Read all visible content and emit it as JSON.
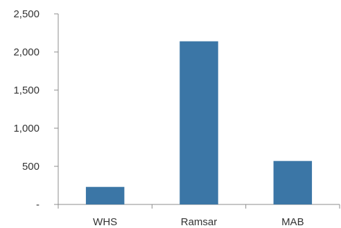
{
  "chart_data": {
    "type": "bar",
    "categories": [
      "WHS",
      "Ramsar",
      "MAB"
    ],
    "values": [
      230,
      2140,
      570
    ],
    "ylim": [
      0,
      2500
    ],
    "yticks": [
      0,
      500,
      1000,
      1500,
      2000,
      2500
    ],
    "ytick_labels": [
      "-",
      "500",
      "1,000",
      "1,500",
      "2,000",
      "2,500"
    ],
    "bar_color": "#3b76a6",
    "axis_color": "#8c8c8c",
    "grid": false,
    "legend": "none"
  }
}
